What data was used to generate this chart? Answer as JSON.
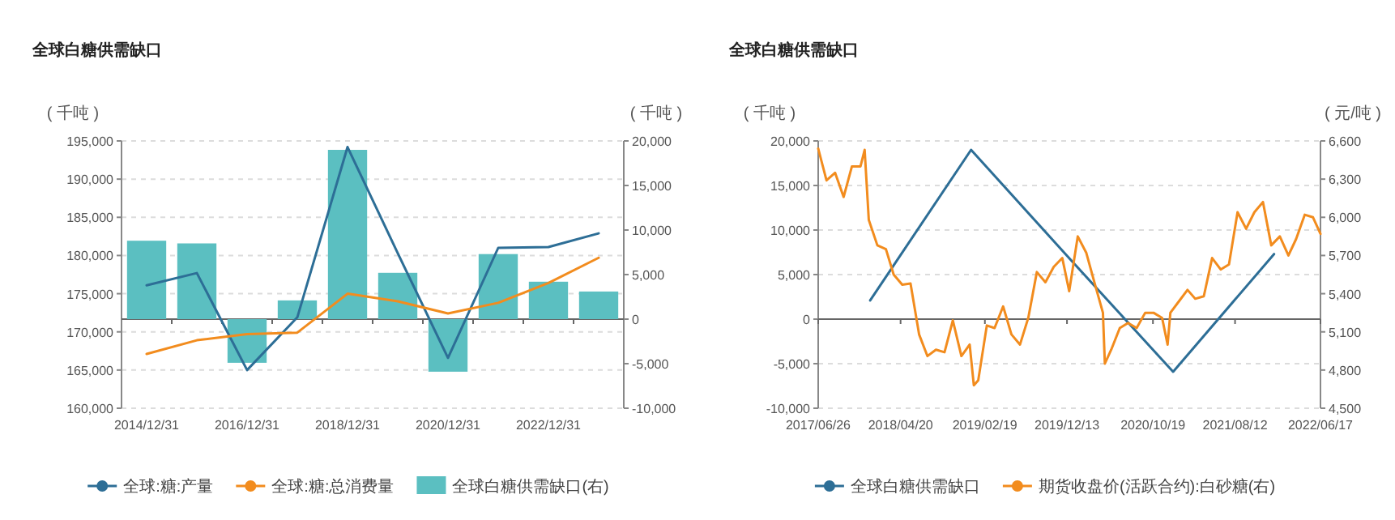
{
  "chart_data": [
    {
      "type": "bar",
      "title": "全球白糖供需缺口",
      "ylabel": "( 千吨 )",
      "y2label": "( 千吨 )",
      "categories": [
        "2014/12/31",
        null,
        "2016/12/31",
        null,
        "2018/12/31",
        null,
        "2020/12/31",
        null,
        "2022/12/31",
        null
      ],
      "series": [
        {
          "name": "全球:糖:产量",
          "type": "line",
          "color": "#2d6e96",
          "values": [
            176100,
            177700,
            165000,
            171900,
            194200,
            180300,
            166600,
            181000,
            181100,
            182900
          ]
        },
        {
          "name": "全球:糖:总消费量",
          "type": "line",
          "color": "#f28c1e",
          "values": [
            167100,
            168900,
            169700,
            169900,
            175000,
            174000,
            172400,
            173800,
            176400,
            179700
          ]
        },
        {
          "name": "全球白糖供需缺口(右)",
          "axis": "y2",
          "color": "#5bbfc1",
          "values": [
            8800,
            8500,
            -4900,
            2100,
            19000,
            5200,
            -5900,
            7300,
            4200,
            3100
          ]
        }
      ],
      "ylim": [
        160000,
        195000
      ],
      "yticks": [
        {
          "value": 160000,
          "label": "160,000"
        },
        {
          "value": 165000,
          "label": "165,000"
        },
        {
          "value": 170000,
          "label": "170,000"
        },
        {
          "value": 175000,
          "label": "175,000"
        },
        {
          "value": 180000,
          "label": "180,000"
        },
        {
          "value": 185000,
          "label": "185,000"
        },
        {
          "value": 190000,
          "label": "190,000"
        },
        {
          "value": 195000,
          "label": "195,000"
        }
      ],
      "y2lim": [
        -10000,
        20000
      ],
      "y2ticks": [
        {
          "value": -10000,
          "label": "-10,000"
        },
        {
          "value": -5000,
          "label": "-5,000"
        },
        0,
        {
          "value": 5000,
          "label": "5,000"
        },
        {
          "value": 10000,
          "label": "10,000"
        },
        {
          "value": 15000,
          "label": "15,000"
        },
        {
          "value": 20000,
          "label": "20,000"
        }
      ],
      "grid": "y",
      "legend": "bottom"
    },
    {
      "type": "line",
      "title": "全球白糖供需缺口",
      "ylabel": "( 千吨 )",
      "y2label": "( 元/吨 )",
      "series": [
        {
          "name": "全球白糖供需缺口",
          "color": "#2d6e96",
          "x": [
            "2017-12-31",
            "2018-12-31",
            "2019-12-31",
            "2020-12-31",
            "2021-12-31"
          ],
          "values": [
            2100,
            19000,
            6500,
            -5900,
            7300
          ]
        },
        {
          "name": "期货收盘价(活跃合约):白砂糖(右)",
          "axis": "y2",
          "color": "#f28c1e",
          "x": [
            "2017-06-26",
            "2017-07-26",
            "2017-08-26",
            "2017-09-26",
            "2017-10-26",
            "2017-11-26",
            "2017-12-11",
            "2017-12-26",
            "2018-01-26",
            "2018-02-26",
            "2018-03-26",
            "2018-04-26",
            "2018-05-26",
            "2018-06-26",
            "2018-07-26",
            "2018-08-26",
            "2018-09-26",
            "2018-10-26",
            "2018-11-26",
            "2018-12-26",
            "2019-01-10",
            "2019-01-26",
            "2019-02-26",
            "2019-03-26",
            "2019-04-26",
            "2019-05-26",
            "2019-06-26",
            "2019-07-26",
            "2019-08-26",
            "2019-09-26",
            "2019-10-26",
            "2019-11-26",
            "2019-12-21",
            "2020-01-21",
            "2020-02-21",
            "2020-03-21",
            "2020-04-21",
            "2020-04-28",
            "2020-05-21",
            "2020-06-21",
            "2020-07-21",
            "2020-08-21",
            "2020-09-21",
            "2020-10-21",
            "2020-11-21",
            "2020-12-11",
            "2020-12-21",
            "2021-01-21",
            "2021-02-21",
            "2021-03-21",
            "2021-04-21",
            "2021-05-21",
            "2021-06-21",
            "2021-07-21",
            "2021-08-21",
            "2021-09-21",
            "2021-10-21",
            "2021-11-21",
            "2021-12-21",
            "2022-01-21",
            "2022-02-21",
            "2022-03-21",
            "2022-04-21",
            "2022-05-21",
            "2022-06-17"
          ],
          "values": [
            6540,
            6290,
            6350,
            6160,
            6400,
            6400,
            6530,
            5980,
            5780,
            5750,
            5550,
            5470,
            5480,
            5080,
            4910,
            4960,
            4940,
            5190,
            4910,
            5000,
            4680,
            4720,
            5150,
            5130,
            5300,
            5080,
            5000,
            5210,
            5570,
            5490,
            5610,
            5680,
            5420,
            5850,
            5720,
            5490,
            5250,
            4850,
            4960,
            5130,
            5170,
            5130,
            5250,
            5250,
            5210,
            5000,
            5250,
            5340,
            5430,
            5360,
            5380,
            5680,
            5590,
            5630,
            6040,
            5910,
            6040,
            6120,
            5780,
            5850,
            5700,
            5830,
            6020,
            6000,
            5870
          ]
        }
      ],
      "xlim": [
        "2017-06-26",
        "2022-06-17"
      ],
      "xticks": [
        {
          "value": "2017-06-26",
          "label": "2017/06/26"
        },
        {
          "value": "2018-04-20",
          "label": "2018/04/20"
        },
        {
          "value": "2019-02-19",
          "label": "2019/02/19"
        },
        {
          "value": "2019-12-13",
          "label": "2019/12/13"
        },
        {
          "value": "2020-10-19",
          "label": "2020/10/19"
        },
        {
          "value": "2021-08-12",
          "label": "2021/08/12"
        },
        {
          "value": "2022-06-17",
          "label": "2022/06/17"
        }
      ],
      "ylim": [
        -10000,
        20000
      ],
      "yticks": [
        {
          "value": -10000,
          "label": "-10,000"
        },
        {
          "value": -5000,
          "label": "-5,000"
        },
        0,
        {
          "value": 5000,
          "label": "5,000"
        },
        {
          "value": 10000,
          "label": "10,000"
        },
        {
          "value": 15000,
          "label": "15,000"
        },
        {
          "value": 20000,
          "label": "20,000"
        }
      ],
      "y2lim": [
        4500,
        6600
      ],
      "y2ticks": [
        {
          "value": 4500,
          "label": "4,500"
        },
        {
          "value": 4800,
          "label": "4,800"
        },
        {
          "value": 5100,
          "label": "5,100"
        },
        {
          "value": 5400,
          "label": "5,400"
        },
        {
          "value": 5700,
          "label": "5,700"
        },
        {
          "value": 6000,
          "label": "6,000"
        },
        {
          "value": 6300,
          "label": "6,300"
        },
        {
          "value": 6600,
          "label": "6,600"
        }
      ],
      "grid": "y",
      "legend": "bottom"
    }
  ]
}
